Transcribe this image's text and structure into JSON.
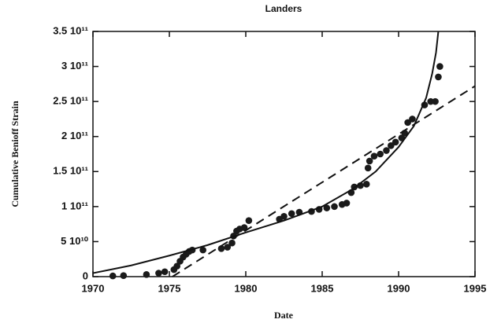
{
  "chart_data": {
    "type": "scatter",
    "title": "Landers",
    "xlabel": "Date",
    "ylabel": "Cumulative Benioff Strain",
    "xlim": [
      1970,
      1995
    ],
    "xticks": [
      1970,
      1975,
      1980,
      1985,
      1990,
      1995
    ],
    "ylim": [
      0,
      350000000000.0
    ],
    "yticks": [
      0,
      {
        "value": 50000000000.0,
        "label": "5 10¹⁰"
      },
      {
        "value": 100000000000.0,
        "label": "1 10¹¹"
      },
      {
        "value": 150000000000.0,
        "label": "1.5 10¹¹"
      },
      {
        "value": 200000000000.0,
        "label": "2 10¹¹"
      },
      {
        "value": 250000000000.0,
        "label": "2.5 10¹¹"
      },
      {
        "value": 300000000000.0,
        "label": "3 10¹¹"
      },
      {
        "value": 350000000000.0,
        "label": "3.5 10¹¹"
      }
    ],
    "series": [
      {
        "mode": "markers",
        "color": "#1a1a1a",
        "x": [
          1971.3,
          1972,
          1973.5,
          1974.3,
          1974.7,
          1975.3,
          1975.5,
          1975.7,
          1975.9,
          1976.1,
          1976.3,
          1976.5,
          1977.2,
          1978.4,
          1978.8,
          1979.1,
          1979.2,
          1979.4,
          1979.6,
          1979.9,
          1980.2,
          1982.2,
          1982.5,
          1983,
          1983.5,
          1984.3,
          1984.8,
          1985.3,
          1985.8,
          1986.3,
          1986.6,
          1986.9,
          1987.1,
          1987.5,
          1987.9,
          1988.0,
          1988.1,
          1988.4,
          1988.8,
          1989.2,
          1989.5,
          1989.8,
          1990.2,
          1990.4,
          1990.6,
          1990.9,
          1991.7,
          1992.1,
          1992.4,
          1992.6,
          1992.7
        ],
        "values": [
          1000000000.0,
          1500000000.0,
          3000000000.0,
          5000000000.0,
          7000000000.0,
          10000000000.0,
          15000000000.0,
          22000000000.0,
          28000000000.0,
          32000000000.0,
          36000000000.0,
          38000000000.0,
          38000000000.0,
          40000000000.0,
          42000000000.0,
          48000000000.0,
          58000000000.0,
          65000000000.0,
          68000000000.0,
          70000000000.0,
          80000000000.0,
          82000000000.0,
          86000000000.0,
          90000000000.0,
          92000000000.0,
          93000000000.0,
          96000000000.0,
          98000000000.0,
          100000000000.0,
          103000000000.0,
          105000000000.0,
          120000000000.0,
          128000000000.0,
          130000000000.0,
          132000000000.0,
          155000000000.0,
          165000000000.0,
          172000000000.0,
          175000000000.0,
          180000000000.0,
          187000000000.0,
          192000000000.0,
          198000000000.0,
          205000000000.0,
          220000000000.0,
          225000000000.0,
          245000000000.0,
          250000000000.0,
          250000000000.0,
          285000000000.0,
          300000000000.0
        ]
      },
      {
        "mode": "line",
        "color": "#111",
        "dash": false,
        "x": [
          1970,
          1972.5,
          1975,
          1977.5,
          1980,
          1982.5,
          1985,
          1987,
          1988.5,
          1990,
          1991,
          1991.8,
          1992.2,
          1992.45,
          1992.6
        ],
        "values": [
          5000000000.0,
          16000000000.0,
          30000000000.0,
          45000000000.0,
          63000000000.0,
          80000000000.0,
          100000000000.0,
          125000000000.0,
          150000000000.0,
          185000000000.0,
          215000000000.0,
          255000000000.0,
          290000000000.0,
          320000000000.0,
          350000000000.0
        ]
      },
      {
        "mode": "line",
        "color": "#111",
        "dash": true,
        "x": [
          1975.2,
          1995
        ],
        "values": [
          0,
          272000000000.0
        ]
      }
    ]
  }
}
